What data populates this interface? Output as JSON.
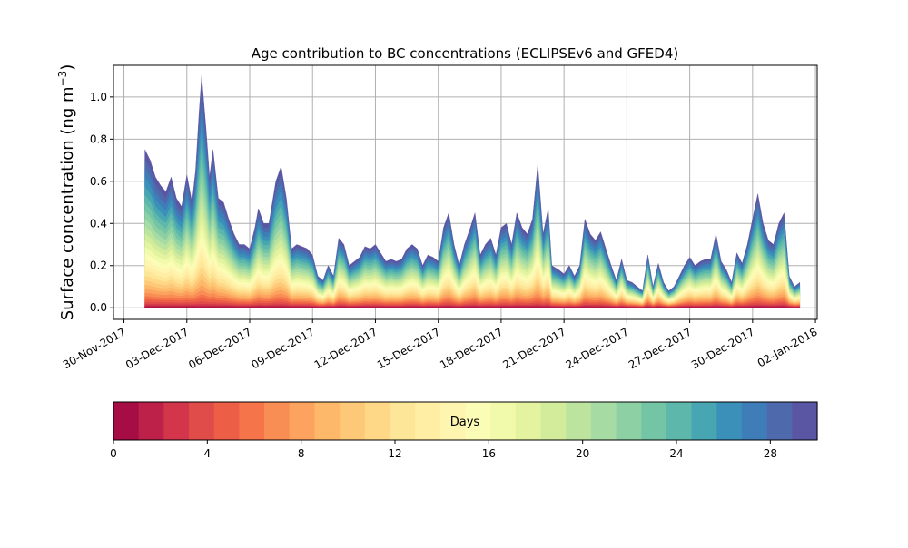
{
  "chart_data": {
    "type": "area",
    "title": "Age contribution to BC concentrations (ECLIPSEv6 and GFED4)",
    "xlabel": "",
    "ylabel": "Surface concentration (ng m",
    "ylabel_sup": "−3",
    "ylabel_close": ")",
    "ylim": [
      -0.055,
      1.15
    ],
    "xlim": [
      "2017-11-29T12:00",
      "2018-01-02T02:00"
    ],
    "grid": true,
    "x_ticks": [
      "2017-11-30",
      "2017-12-03",
      "2017-12-06",
      "2017-12-09",
      "2017-12-12",
      "2017-12-15",
      "2017-12-18",
      "2017-12-21",
      "2017-12-24",
      "2017-12-27",
      "2017-12-30",
      "2018-01-02"
    ],
    "x_tick_labels": [
      "30-Nov-2017",
      "03-Dec-2017",
      "06-Dec-2017",
      "09-Dec-2017",
      "12-Dec-2017",
      "15-Dec-2017",
      "18-Dec-2017",
      "21-Dec-2017",
      "24-Dec-2017",
      "27-Dec-2017",
      "30-Dec-2017",
      "02-Jan-2018"
    ],
    "y_ticks": [
      0.0,
      0.2,
      0.4,
      0.6,
      0.8,
      1.0
    ],
    "y_tick_labels": [
      "0.0",
      "0.2",
      "0.4",
      "0.6",
      "0.8",
      "1.0"
    ],
    "total": [
      [
        "2017-12-01T00:00",
        0.75
      ],
      [
        "2017-12-01T06:00",
        0.7
      ],
      [
        "2017-12-01T12:00",
        0.62
      ],
      [
        "2017-12-01T18:00",
        0.58
      ],
      [
        "2017-12-02T00:00",
        0.55
      ],
      [
        "2017-12-02T06:00",
        0.62
      ],
      [
        "2017-12-02T12:00",
        0.52
      ],
      [
        "2017-12-02T18:00",
        0.48
      ],
      [
        "2017-12-03T00:00",
        0.63
      ],
      [
        "2017-12-03T06:00",
        0.5
      ],
      [
        "2017-12-03T10:00",
        0.65
      ],
      [
        "2017-12-03T14:00",
        0.92
      ],
      [
        "2017-12-03T17:00",
        1.1
      ],
      [
        "2017-12-03T22:00",
        0.85
      ],
      [
        "2017-12-04T02:00",
        0.62
      ],
      [
        "2017-12-04T06:00",
        0.75
      ],
      [
        "2017-12-04T12:00",
        0.52
      ],
      [
        "2017-12-04T18:00",
        0.5
      ],
      [
        "2017-12-05T00:00",
        0.42
      ],
      [
        "2017-12-05T06:00",
        0.35
      ],
      [
        "2017-12-05T12:00",
        0.3
      ],
      [
        "2017-12-05T18:00",
        0.3
      ],
      [
        "2017-12-06T00:00",
        0.28
      ],
      [
        "2017-12-06T06:00",
        0.38
      ],
      [
        "2017-12-06T10:00",
        0.47
      ],
      [
        "2017-12-06T16:00",
        0.4
      ],
      [
        "2017-12-06T22:00",
        0.4
      ],
      [
        "2017-12-07T06:00",
        0.6
      ],
      [
        "2017-12-07T12:00",
        0.67
      ],
      [
        "2017-12-07T18:00",
        0.52
      ],
      [
        "2017-12-08T00:00",
        0.28
      ],
      [
        "2017-12-08T06:00",
        0.3
      ],
      [
        "2017-12-08T12:00",
        0.29
      ],
      [
        "2017-12-08T18:00",
        0.28
      ],
      [
        "2017-12-09T00:00",
        0.25
      ],
      [
        "2017-12-09T06:00",
        0.15
      ],
      [
        "2017-12-09T12:00",
        0.13
      ],
      [
        "2017-12-09T18:00",
        0.2
      ],
      [
        "2017-12-10T00:00",
        0.15
      ],
      [
        "2017-12-10T06:00",
        0.33
      ],
      [
        "2017-12-10T12:00",
        0.3
      ],
      [
        "2017-12-10T18:00",
        0.2
      ],
      [
        "2017-12-11T00:00",
        0.22
      ],
      [
        "2017-12-11T06:00",
        0.24
      ],
      [
        "2017-12-11T12:00",
        0.29
      ],
      [
        "2017-12-11T18:00",
        0.28
      ],
      [
        "2017-12-12T00:00",
        0.3
      ],
      [
        "2017-12-12T06:00",
        0.26
      ],
      [
        "2017-12-12T12:00",
        0.22
      ],
      [
        "2017-12-12T18:00",
        0.23
      ],
      [
        "2017-12-13T00:00",
        0.22
      ],
      [
        "2017-12-13T06:00",
        0.23
      ],
      [
        "2017-12-13T12:00",
        0.28
      ],
      [
        "2017-12-13T18:00",
        0.3
      ],
      [
        "2017-12-14T00:00",
        0.28
      ],
      [
        "2017-12-14T06:00",
        0.2
      ],
      [
        "2017-12-14T12:00",
        0.25
      ],
      [
        "2017-12-14T18:00",
        0.24
      ],
      [
        "2017-12-15T00:00",
        0.22
      ],
      [
        "2017-12-15T06:00",
        0.38
      ],
      [
        "2017-12-15T12:00",
        0.45
      ],
      [
        "2017-12-15T18:00",
        0.3
      ],
      [
        "2017-12-16T00:00",
        0.2
      ],
      [
        "2017-12-16T06:00",
        0.3
      ],
      [
        "2017-12-16T12:00",
        0.37
      ],
      [
        "2017-12-16T18:00",
        0.45
      ],
      [
        "2017-12-17T00:00",
        0.25
      ],
      [
        "2017-12-17T06:00",
        0.3
      ],
      [
        "2017-12-17T12:00",
        0.33
      ],
      [
        "2017-12-17T18:00",
        0.25
      ],
      [
        "2017-12-18T00:00",
        0.38
      ],
      [
        "2017-12-18T06:00",
        0.4
      ],
      [
        "2017-12-18T12:00",
        0.3
      ],
      [
        "2017-12-18T18:00",
        0.45
      ],
      [
        "2017-12-19T00:00",
        0.38
      ],
      [
        "2017-12-19T06:00",
        0.35
      ],
      [
        "2017-12-19T12:00",
        0.42
      ],
      [
        "2017-12-19T18:00",
        0.68
      ],
      [
        "2017-12-20T00:00",
        0.35
      ],
      [
        "2017-12-20T06:00",
        0.47
      ],
      [
        "2017-12-20T10:00",
        0.2
      ],
      [
        "2017-12-20T18:00",
        0.18
      ],
      [
        "2017-12-21T00:00",
        0.16
      ],
      [
        "2017-12-21T06:00",
        0.2
      ],
      [
        "2017-12-21T12:00",
        0.15
      ],
      [
        "2017-12-21T18:00",
        0.2
      ],
      [
        "2017-12-22T00:00",
        0.42
      ],
      [
        "2017-12-22T06:00",
        0.35
      ],
      [
        "2017-12-22T12:00",
        0.32
      ],
      [
        "2017-12-22T18:00",
        0.36
      ],
      [
        "2017-12-23T00:00",
        0.28
      ],
      [
        "2017-12-23T06:00",
        0.2
      ],
      [
        "2017-12-23T12:00",
        0.13
      ],
      [
        "2017-12-23T18:00",
        0.23
      ],
      [
        "2017-12-24T00:00",
        0.13
      ],
      [
        "2017-12-24T06:00",
        0.12
      ],
      [
        "2017-12-24T12:00",
        0.1
      ],
      [
        "2017-12-24T18:00",
        0.08
      ],
      [
        "2017-12-25T00:00",
        0.25
      ],
      [
        "2017-12-25T06:00",
        0.1
      ],
      [
        "2017-12-25T12:00",
        0.21
      ],
      [
        "2017-12-25T18:00",
        0.12
      ],
      [
        "2017-12-26T00:00",
        0.08
      ],
      [
        "2017-12-26T06:00",
        0.1
      ],
      [
        "2017-12-26T12:00",
        0.15
      ],
      [
        "2017-12-26T18:00",
        0.2
      ],
      [
        "2017-12-27T00:00",
        0.24
      ],
      [
        "2017-12-27T06:00",
        0.2
      ],
      [
        "2017-12-27T12:00",
        0.22
      ],
      [
        "2017-12-27T18:00",
        0.23
      ],
      [
        "2017-12-28T00:00",
        0.23
      ],
      [
        "2017-12-28T06:00",
        0.35
      ],
      [
        "2017-12-28T12:00",
        0.22
      ],
      [
        "2017-12-28T18:00",
        0.18
      ],
      [
        "2017-12-29T00:00",
        0.12
      ],
      [
        "2017-12-29T06:00",
        0.26
      ],
      [
        "2017-12-29T12:00",
        0.21
      ],
      [
        "2017-12-29T18:00",
        0.3
      ],
      [
        "2017-12-30T00:00",
        0.42
      ],
      [
        "2017-12-30T06:00",
        0.54
      ],
      [
        "2017-12-30T12:00",
        0.4
      ],
      [
        "2017-12-30T18:00",
        0.32
      ],
      [
        "2017-12-31T00:00",
        0.3
      ],
      [
        "2017-12-31T06:00",
        0.4
      ],
      [
        "2017-12-31T12:00",
        0.45
      ],
      [
        "2017-12-31T18:00",
        0.15
      ],
      [
        "2018-01-01T00:00",
        0.1
      ],
      [
        "2018-01-01T06:00",
        0.12
      ]
    ],
    "colorbar": {
      "label": "Days",
      "min": 0,
      "max": 30,
      "step": 1,
      "ticks": [
        0,
        4,
        8,
        12,
        16,
        20,
        24,
        28
      ],
      "tick_labels": [
        "0",
        "4",
        "8",
        "12",
        "16",
        "20",
        "24",
        "28"
      ],
      "colormap": "Spectral",
      "colors": [
        "#a50d44",
        "#bd2048",
        "#d3354b",
        "#e04c4a",
        "#ec5e46",
        "#f5744a",
        "#f98e55",
        "#fca45f",
        "#fdb869",
        "#fdc877",
        "#fed887",
        "#fee699",
        "#ffeea3",
        "#fef5b1",
        "#fbfcb6",
        "#f1f9aa",
        "#e3f3a0",
        "#d2ec9b",
        "#bde49f",
        "#a6dba4",
        "#8dd0a4",
        "#74c5a5",
        "#5db7aa",
        "#48a5b2",
        "#3b90ba",
        "#3e7db7",
        "#4e6aac",
        "#5a56a4"
      ]
    }
  }
}
